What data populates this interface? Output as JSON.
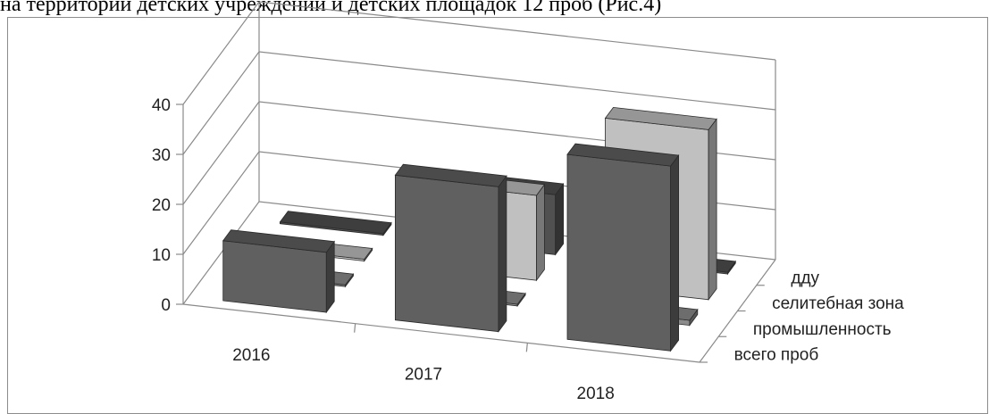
{
  "caption": "на территории детских учреждений и детских площадок 12 проб (Рис.4)",
  "chart_data": {
    "type": "bar",
    "style": "3d-column",
    "categories": [
      "2016",
      "2017",
      "2018"
    ],
    "ylim": [
      0,
      40
    ],
    "yticks": [
      0,
      10,
      20,
      30,
      40
    ],
    "grid": true,
    "series": [
      {
        "name": "всего проб",
        "values": [
          12,
          29,
          37
        ],
        "color": "#606060"
      },
      {
        "name": "промышленность",
        "values": [
          0,
          0,
          1
        ],
        "color": "#8c8c8c"
      },
      {
        "name": "селитебная зона",
        "values": [
          0,
          17,
          34
        ],
        "color": "#c0c0c0"
      },
      {
        "name": "дду",
        "values": [
          0,
          12,
          0
        ],
        "color": "#505050"
      }
    ]
  }
}
